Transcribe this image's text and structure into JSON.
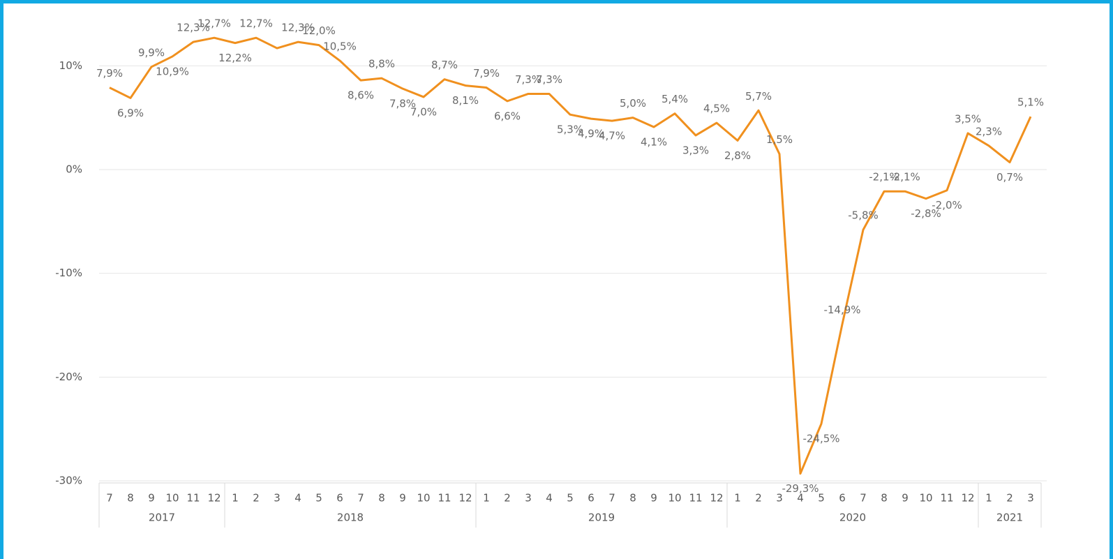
{
  "chart_data": {
    "type": "line",
    "categories": [
      "7",
      "8",
      "9",
      "10",
      "11",
      "12",
      "1",
      "2",
      "3",
      "4",
      "5",
      "6",
      "7",
      "8",
      "9",
      "10",
      "11",
      "12",
      "1",
      "2",
      "3",
      "4",
      "5",
      "6",
      "7",
      "8",
      "9",
      "10",
      "11",
      "12",
      "1",
      "2",
      "3",
      "4",
      "5",
      "6",
      "7",
      "8",
      "9",
      "10",
      "11",
      "12",
      "1",
      "2",
      "3"
    ],
    "x_groups": [
      {
        "name": "2017",
        "size": 6
      },
      {
        "name": "2018",
        "size": 12
      },
      {
        "name": "2019",
        "size": 12
      },
      {
        "name": "2020",
        "size": 12
      },
      {
        "name": "2021",
        "size": 3
      }
    ],
    "series": [
      {
        "color": "#f0901e",
        "values": [
          7.9,
          6.9,
          9.9,
          10.9,
          12.3,
          12.7,
          12.2,
          12.7,
          11.7,
          12.3,
          12.0,
          10.5,
          8.6,
          8.8,
          7.8,
          7.0,
          8.7,
          8.1,
          7.9,
          6.6,
          7.3,
          7.3,
          5.3,
          4.9,
          4.7,
          5.0,
          4.1,
          5.4,
          3.3,
          4.5,
          2.8,
          5.7,
          1.5,
          -29.3,
          -24.5,
          -14.9,
          -5.8,
          -2.1,
          -2.1,
          -2.8,
          -2.0,
          3.5,
          2.3,
          0.7,
          5.1
        ],
        "value_labels": [
          "7,9%",
          "6,9%",
          "9,9%",
          "10,9%",
          "12,3%",
          "12,7%",
          "12,2%",
          "12,7%",
          null,
          "12,3%",
          "12,0%",
          "10,5%",
          "8,6%",
          "8,8%",
          "7,8%",
          "7,0%",
          "8,7%",
          "8,1%",
          "7,9%",
          "6,6%",
          "7,3%",
          "7,3%",
          "5,3%",
          "4,9%",
          "4,7%",
          "5,0%",
          "4,1%",
          "5,4%",
          "3,3%",
          "4,5%",
          "2,8%",
          "5,7%",
          "1,5%",
          "-29,3%",
          "-24,5%",
          "-14,9%",
          "-5,8%",
          "-2,1%",
          "-2,1%",
          "-2,8%",
          "-2,0%",
          "3,5%",
          "2,3%",
          "0,7%",
          "5,1%"
        ]
      }
    ],
    "ylim": [
      -30,
      15
    ],
    "yticks": [
      {
        "value": -30,
        "label": "-30%"
      },
      {
        "value": -20,
        "label": "-20%"
      },
      {
        "value": -10,
        "label": "-10%"
      },
      {
        "value": 0,
        "label": "0%"
      },
      {
        "value": 10,
        "label": "10%"
      }
    ],
    "grid": true
  }
}
